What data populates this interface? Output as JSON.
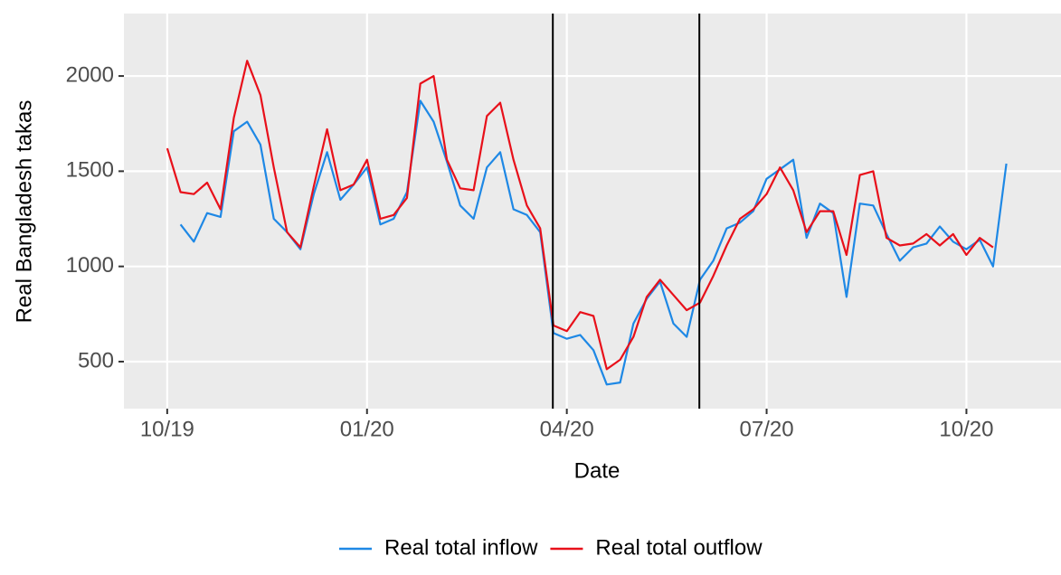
{
  "chart_data": {
    "type": "line",
    "x_label": "Date",
    "y_label": "Real Bangladesh takas",
    "x": [
      0,
      0.2,
      0.4,
      0.6,
      0.8,
      1,
      1.2,
      1.4,
      1.6,
      1.8,
      2,
      2.2,
      2.4,
      2.6,
      2.8,
      3,
      3.2,
      3.4,
      3.6,
      3.8,
      4,
      4.2,
      4.4,
      4.6,
      4.8,
      5,
      5.2,
      5.4,
      5.6,
      5.8,
      6,
      6.2,
      6.4,
      6.6,
      6.8,
      7,
      7.2,
      7.4,
      7.6,
      7.8,
      8,
      8.2,
      8.4,
      8.6,
      8.8,
      9,
      9.2,
      9.4,
      9.6,
      9.8,
      10,
      10.2,
      10.4,
      10.6,
      10.8,
      11,
      11.2,
      11.4,
      11.6,
      11.8,
      12,
      12.2,
      12.4,
      12.6
    ],
    "series": [
      {
        "name": "Real total inflow",
        "color": "#1e88e5",
        "values": [
          null,
          1220,
          1130,
          1280,
          1260,
          1710,
          1760,
          1640,
          1250,
          1180,
          1090,
          1380,
          1600,
          1350,
          1430,
          1520,
          1220,
          1250,
          1390,
          1870,
          1760,
          1550,
          1320,
          1250,
          1520,
          1600,
          1300,
          1270,
          1180,
          650,
          620,
          640,
          560,
          380,
          390,
          700,
          830,
          920,
          700,
          630,
          930,
          1030,
          1200,
          1230,
          1290,
          1460,
          1510,
          1560,
          1150,
          1330,
          1280,
          840,
          1330,
          1320,
          1170,
          1030,
          1100,
          1120,
          1210,
          1130,
          1090,
          1140,
          1000,
          1540
        ]
      },
      {
        "name": "Real total outflow",
        "color": "#e8101a",
        "values": [
          1620,
          1390,
          1380,
          1440,
          1300,
          1780,
          2080,
          1900,
          1520,
          1180,
          1100,
          1420,
          1720,
          1400,
          1430,
          1560,
          1250,
          1270,
          1360,
          1960,
          2000,
          1560,
          1410,
          1400,
          1790,
          1860,
          1560,
          1320,
          1200,
          690,
          660,
          760,
          740,
          460,
          510,
          630,
          840,
          930,
          850,
          770,
          810,
          950,
          1110,
          1250,
          1300,
          1380,
          1520,
          1400,
          1180,
          1290,
          1290,
          1060,
          1480,
          1500,
          1150,
          1110,
          1120,
          1170,
          1110,
          1170,
          1060,
          1150,
          1100,
          null
        ]
      }
    ],
    "vlines": [
      5.79,
      7.99
    ],
    "xlim": [
      -0.65,
      13.42
    ],
    "xticks": [
      {
        "value": 0,
        "label": "10/19"
      },
      {
        "value": 3,
        "label": "01/20"
      },
      {
        "value": 6,
        "label": "04/20"
      },
      {
        "value": 9,
        "label": "07/20"
      },
      {
        "value": 12,
        "label": "10/20"
      }
    ],
    "ylim": [
      253,
      2328
    ],
    "yticks": [
      500,
      1000,
      1500,
      2000
    ],
    "grid": true,
    "legend": "bottom"
  }
}
